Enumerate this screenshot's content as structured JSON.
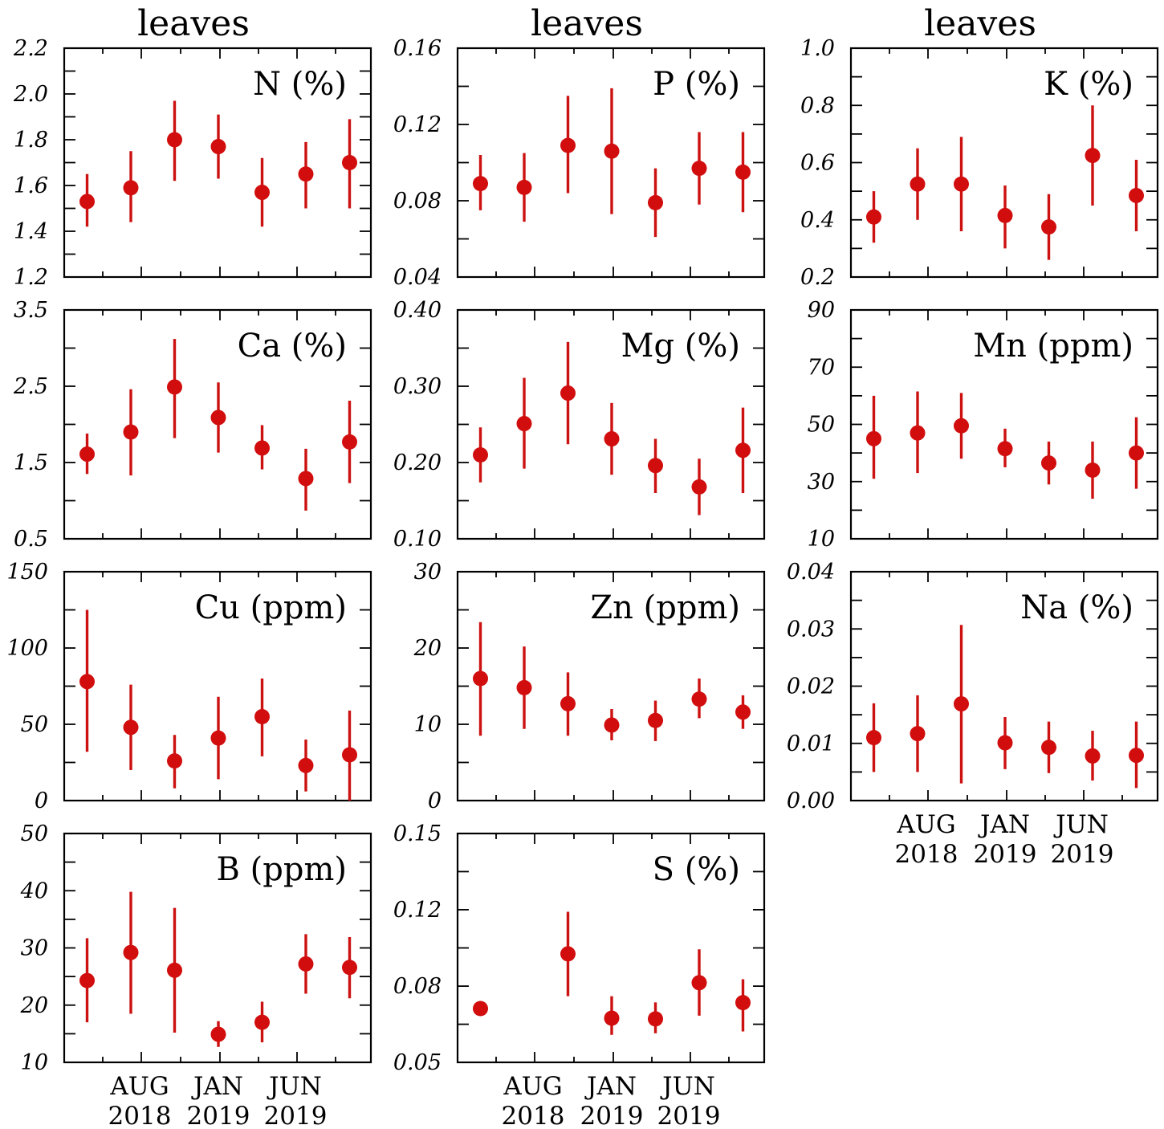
{
  "colors": {
    "series": "#d10d0d",
    "axis": "#000000"
  },
  "column_titles": [
    "leaves",
    "leaves",
    "leaves"
  ],
  "chart_data": [
    {
      "type": "scatter",
      "title": "N (%)",
      "ylim": [
        1.2,
        2.2
      ],
      "ytick_labels": [
        "1.2",
        "1.4",
        "1.6",
        "1.8",
        "2.0",
        "2.2"
      ],
      "xtick_labels": [],
      "x": [
        1,
        2,
        3,
        4,
        5,
        6,
        7
      ],
      "series": [
        {
          "values": [
            1.53,
            1.59,
            1.8,
            1.77,
            1.57,
            1.65,
            1.7
          ],
          "err_low": [
            1.42,
            1.44,
            1.62,
            1.63,
            1.42,
            1.5,
            1.5
          ],
          "err_high": [
            1.65,
            1.75,
            1.97,
            1.91,
            1.72,
            1.79,
            1.89
          ]
        }
      ]
    },
    {
      "type": "scatter",
      "title": "P (%)",
      "ylim": [
        0.04,
        0.16
      ],
      "ytick_labels": [
        "0.04",
        "0.08",
        "0.12",
        "0.16"
      ],
      "xtick_labels": [],
      "x": [
        1,
        2,
        3,
        4,
        5,
        6,
        7
      ],
      "series": [
        {
          "values": [
            0.089,
            0.087,
            0.109,
            0.106,
            0.079,
            0.097,
            0.095
          ],
          "err_low": [
            0.075,
            0.069,
            0.084,
            0.073,
            0.061,
            0.078,
            0.074
          ],
          "err_high": [
            0.104,
            0.105,
            0.135,
            0.139,
            0.097,
            0.116,
            0.116
          ]
        }
      ]
    },
    {
      "type": "scatter",
      "title": "K (%)",
      "ylim": [
        0.2,
        1.0
      ],
      "ytick_labels": [
        "0.2",
        "0.4",
        "0.6",
        "0.8",
        "1.0"
      ],
      "xtick_labels": [],
      "x": [
        1,
        2,
        3,
        4,
        5,
        6,
        7
      ],
      "series": [
        {
          "values": [
            0.41,
            0.525,
            0.525,
            0.415,
            0.375,
            0.625,
            0.485
          ],
          "err_low": [
            0.32,
            0.4,
            0.36,
            0.3,
            0.26,
            0.45,
            0.36
          ],
          "err_high": [
            0.5,
            0.65,
            0.69,
            0.52,
            0.49,
            0.8,
            0.61
          ]
        }
      ]
    },
    {
      "type": "scatter",
      "title": "Ca (%)",
      "ylim": [
        0.5,
        3.5
      ],
      "ytick_labels": [
        "0.5",
        "1.5",
        "2.5",
        "3.5"
      ],
      "xtick_labels": [],
      "x": [
        1,
        2,
        3,
        4,
        5,
        6,
        7
      ],
      "series": [
        {
          "values": [
            1.61,
            1.9,
            2.49,
            2.09,
            1.69,
            1.29,
            1.77
          ],
          "err_low": [
            1.35,
            1.33,
            1.82,
            1.63,
            1.41,
            0.87,
            1.23
          ],
          "err_high": [
            1.88,
            2.46,
            3.12,
            2.55,
            1.99,
            1.68,
            2.31
          ]
        }
      ]
    },
    {
      "type": "scatter",
      "title": "Mg (%)",
      "ylim": [
        0.1,
        0.4
      ],
      "ytick_labels": [
        "0.10",
        "0.20",
        "0.30",
        "0.40"
      ],
      "xtick_labels": [],
      "x": [
        1,
        2,
        3,
        4,
        5,
        6,
        7
      ],
      "series": [
        {
          "values": [
            0.21,
            0.251,
            0.291,
            0.231,
            0.196,
            0.168,
            0.216
          ],
          "err_low": [
            0.174,
            0.192,
            0.224,
            0.184,
            0.16,
            0.131,
            0.16
          ],
          "err_high": [
            0.246,
            0.311,
            0.358,
            0.278,
            0.231,
            0.205,
            0.272
          ]
        }
      ]
    },
    {
      "type": "scatter",
      "title": "Mn (ppm)",
      "ylim": [
        10,
        90
      ],
      "ytick_labels": [
        "10",
        "30",
        "50",
        "70",
        "90"
      ],
      "xtick_labels": [],
      "x": [
        1,
        2,
        3,
        4,
        5,
        6,
        7
      ],
      "series": [
        {
          "values": [
            45,
            47,
            49.5,
            41.5,
            36.5,
            34,
            40
          ],
          "err_low": [
            31,
            33,
            38,
            35,
            29,
            24,
            27.5
          ],
          "err_high": [
            60,
            61.5,
            61,
            48.5,
            44,
            44,
            52.5
          ]
        }
      ]
    },
    {
      "type": "scatter",
      "title": "Cu (ppm)",
      "ylim": [
        0,
        150
      ],
      "ytick_labels": [
        "0",
        "50",
        "100",
        "150"
      ],
      "xtick_labels": [],
      "x": [
        1,
        2,
        3,
        4,
        5,
        6,
        7
      ],
      "series": [
        {
          "values": [
            78,
            48,
            26,
            41,
            55,
            23,
            30
          ],
          "err_low": [
            32,
            20,
            8,
            14,
            29,
            6,
            0
          ],
          "err_high": [
            125,
            76,
            43,
            68,
            80,
            40,
            59
          ]
        }
      ]
    },
    {
      "type": "scatter",
      "title": "Zn (ppm)",
      "ylim": [
        0,
        30
      ],
      "ytick_labels": [
        "0",
        "10",
        "20",
        "30"
      ],
      "xtick_labels": [],
      "x": [
        1,
        2,
        3,
        4,
        5,
        6,
        7
      ],
      "series": [
        {
          "values": [
            16,
            14.8,
            12.7,
            9.9,
            10.5,
            13.3,
            11.6
          ],
          "err_low": [
            8.5,
            9.4,
            8.5,
            7.9,
            7.8,
            10.8,
            9.4
          ],
          "err_high": [
            23.4,
            20.2,
            16.8,
            12.0,
            13.1,
            16.0,
            13.8
          ]
        }
      ]
    },
    {
      "type": "scatter",
      "title": "Na (%)",
      "ylim": [
        0.0,
        0.04
      ],
      "ytick_labels": [
        "0.00",
        "0.01",
        "0.02",
        "0.03",
        "0.04"
      ],
      "xtick_labels": [
        "AUG\n2018",
        "JAN\n2019",
        "JUN\n2019"
      ],
      "x": [
        1,
        2,
        3,
        4,
        5,
        6,
        7
      ],
      "series": [
        {
          "values": [
            0.011,
            0.0117,
            0.0169,
            0.0101,
            0.0093,
            0.0078,
            0.0079
          ],
          "err_low": [
            0.005,
            0.005,
            0.003,
            0.0055,
            0.0048,
            0.0035,
            0.0022
          ],
          "err_high": [
            0.017,
            0.0184,
            0.0307,
            0.0146,
            0.0138,
            0.0122,
            0.0138
          ]
        }
      ]
    },
    {
      "type": "scatter",
      "title": "B (ppm)",
      "ylim": [
        10,
        50
      ],
      "ytick_labels": [
        "10",
        "20",
        "30",
        "40",
        "50"
      ],
      "xtick_labels": [
        "AUG\n2018",
        "JAN\n2019",
        "JUN\n2019"
      ],
      "x": [
        1,
        2,
        3,
        4,
        5,
        6,
        7
      ],
      "series": [
        {
          "values": [
            24.3,
            29.2,
            26.1,
            14.9,
            17.0,
            27.2,
            26.6
          ],
          "err_low": [
            17.0,
            18.5,
            15.2,
            12.7,
            13.5,
            22.0,
            21.2
          ],
          "err_high": [
            31.7,
            39.8,
            37.0,
            17.2,
            20.6,
            32.4,
            31.9
          ]
        }
      ]
    },
    {
      "type": "scatter",
      "title": "S (%)",
      "ylim": [
        0.05,
        0.15
      ],
      "ytick_labels": [
        "0.05",
        "0.08",
        "0.12",
        "0.15"
      ],
      "ytick_values": [
        0.05,
        0.0833,
        0.1167,
        0.15
      ],
      "xtick_labels": [
        "AUG\n2018",
        "JAN\n2019",
        "JUN\n2019"
      ],
      "x": [
        1,
        3,
        4,
        5,
        6,
        7
      ],
      "series": [
        {
          "values": [
            0.0735,
            0.0974,
            0.0693,
            0.069,
            0.0848,
            0.0761
          ],
          "err_low": [
            0.071,
            0.0789,
            0.062,
            0.0627,
            0.0704,
            0.0635
          ],
          "err_high": [
            0.0761,
            0.1158,
            0.0789,
            0.0762,
            0.0994,
            0.0863
          ]
        }
      ]
    }
  ]
}
